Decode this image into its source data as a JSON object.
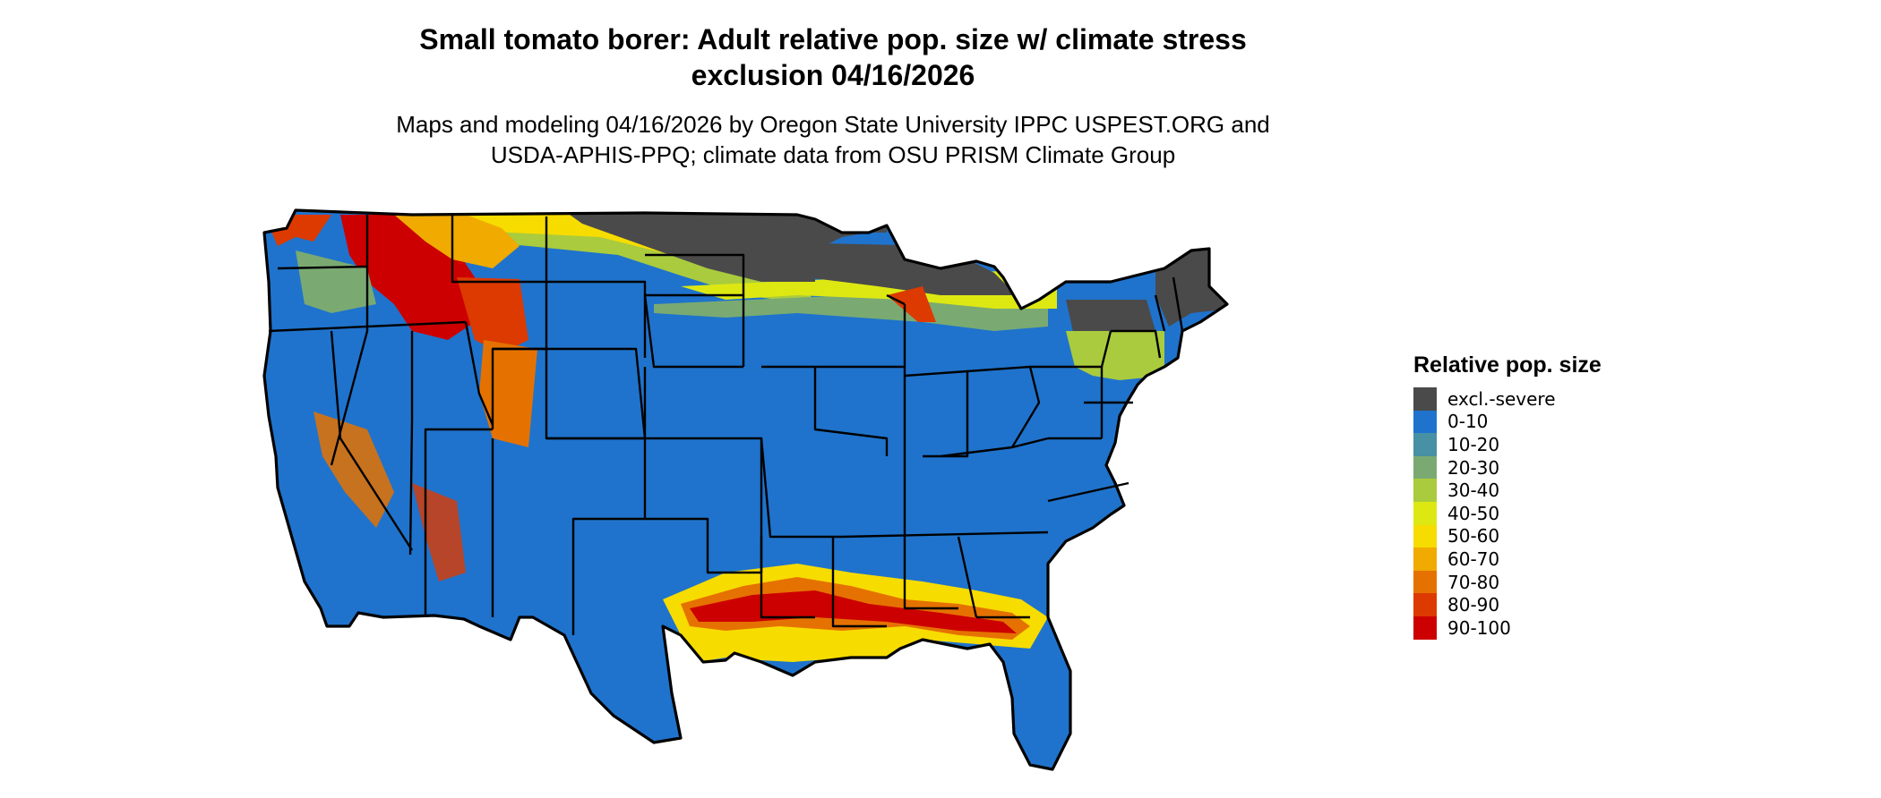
{
  "title_line1": "Small tomato borer: Adult relative pop. size w/ climate stress",
  "title_line2": "exclusion 04/16/2026",
  "subtitle_line1": "Maps and modeling 04/16/2026 by Oregon State University IPPC USPEST.ORG and",
  "subtitle_line2": "USDA-APHIS-PPQ; climate data from OSU PRISM Climate Group",
  "legend": {
    "title": "Relative pop. size",
    "items": [
      {
        "label": "excl.-severe",
        "color": "#4a4a4a"
      },
      {
        "label": "0-10",
        "color": "#1f73cc"
      },
      {
        "label": "10-20",
        "color": "#4890a4"
      },
      {
        "label": "20-30",
        "color": "#7aaa72"
      },
      {
        "label": "30-40",
        "color": "#aacb3d"
      },
      {
        "label": "40-50",
        "color": "#dde812"
      },
      {
        "label": "50-60",
        "color": "#f7dc00"
      },
      {
        "label": "60-70",
        "color": "#f0aa00"
      },
      {
        "label": "70-80",
        "color": "#e57200"
      },
      {
        "label": "80-90",
        "color": "#dc3a00"
      },
      {
        "label": "90-100",
        "color": "#cc0000"
      }
    ]
  }
}
